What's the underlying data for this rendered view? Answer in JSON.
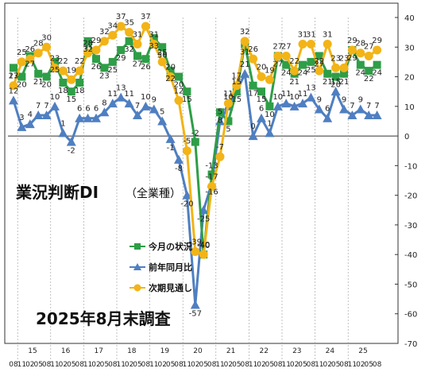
{
  "chart_data": {
    "type": "line",
    "title": "業況判断DI",
    "title_note": "（全業種）",
    "subtitle": "2025年8月末調査",
    "ylim": [
      -70,
      40
    ],
    "yticks": [
      40,
      30,
      20,
      10,
      0,
      -10,
      -20,
      -30,
      -40,
      -50,
      -60,
      -70
    ],
    "year_labels": [
      "15",
      "16",
      "17",
      "18",
      "19",
      "20",
      "21",
      "22",
      "23",
      "24",
      "25"
    ],
    "month_cycle": [
      "08",
      "11",
      "02",
      "05"
    ],
    "legend_position": "bottom-center",
    "series": [
      {
        "name": "今月の状況",
        "color": "#2e9e47",
        "marker": "square",
        "values": [
          23,
          20,
          27,
          21,
          20,
          25,
          18,
          15,
          18,
          32,
          26,
          23,
          25,
          29,
          32,
          27,
          26,
          33,
          30,
          22,
          20,
          15,
          -2,
          -40,
          -13,
          8,
          5,
          15,
          31,
          17,
          15,
          10,
          27,
          24,
          21,
          24,
          25,
          27,
          21,
          20,
          21,
          29,
          24,
          22,
          24
        ],
        "labels": [
          23,
          20,
          27,
          21,
          20,
          25,
          18,
          15,
          18,
          32,
          26,
          23,
          25,
          29,
          32,
          27,
          26,
          33,
          30,
          22,
          20,
          15,
          -2,
          -40,
          -13,
          8,
          5,
          15,
          31,
          17,
          15,
          10,
          27,
          24,
          21,
          24,
          25,
          27,
          21,
          20,
          21,
          29,
          24,
          22,
          24
        ]
      },
      {
        "name": "前年同月比",
        "color": "#4f7fc1",
        "marker": "triangle",
        "values": [
          12,
          3,
          4,
          7,
          7,
          10,
          1,
          -2,
          6,
          6,
          6,
          8,
          11,
          13,
          11,
          7,
          10,
          9,
          5,
          -1,
          -8,
          -20,
          -57,
          -25,
          -16,
          5,
          10,
          15,
          21,
          0,
          6,
          1,
          10,
          11,
          10,
          11,
          13,
          9,
          6,
          15,
          9,
          7,
          9,
          7,
          7
        ],
        "labels": [
          12,
          3,
          4,
          7,
          7,
          10,
          1,
          -2,
          6,
          6,
          6,
          8,
          11,
          13,
          11,
          7,
          10,
          9,
          5,
          -1,
          -8,
          -20,
          -57,
          -25,
          -16,
          5,
          10,
          15,
          21,
          0,
          6,
          1,
          10,
          11,
          10,
          11,
          13,
          9,
          6,
          15,
          9,
          7,
          9,
          7,
          7
        ]
      },
      {
        "name": "次期見通し",
        "color": "#f2b417",
        "marker": "circle",
        "values": [
          17,
          25,
          26,
          28,
          30,
          23,
          22,
          19,
          22,
          28,
          29,
          32,
          34,
          37,
          35,
          31,
          37,
          31,
          25,
          20,
          12,
          -5,
          -39,
          -40,
          -17,
          -7,
          11,
          17,
          32,
          26,
          20,
          19,
          27,
          27,
          22,
          31,
          31,
          22,
          31,
          23,
          23,
          29,
          28,
          27,
          29
        ],
        "labels": [
          17,
          25,
          26,
          28,
          30,
          23,
          22,
          19,
          22,
          28,
          29,
          32,
          34,
          37,
          35,
          31,
          37,
          31,
          25,
          20,
          12,
          -5,
          -39,
          -40,
          -17,
          -7,
          11,
          17,
          32,
          26,
          20,
          19,
          27,
          27,
          22,
          31,
          31,
          22,
          31,
          23,
          23,
          29,
          28,
          27,
          29
        ]
      }
    ]
  }
}
